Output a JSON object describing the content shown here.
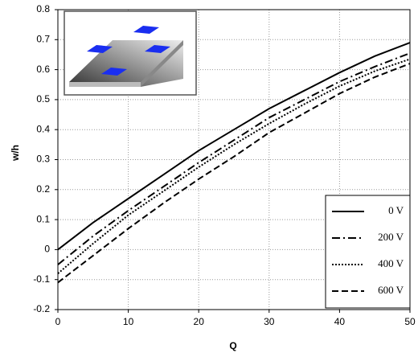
{
  "chart_data": {
    "type": "line",
    "x_label": "Q",
    "y_label": "w/h",
    "x": [
      0,
      5,
      10,
      15,
      20,
      25,
      30,
      35,
      40,
      45,
      50
    ],
    "series": [
      {
        "name": "0 V",
        "color": "#000000",
        "dash": "solid",
        "values": [
          0,
          0.09,
          0.17,
          0.25,
          0.33,
          0.4,
          0.47,
          0.53,
          0.59,
          0.645,
          0.69
        ]
      },
      {
        "name": "200 V",
        "color": "#000000",
        "dash": "dashdot",
        "values": [
          -0.05,
          0.045,
          0.13,
          0.21,
          0.29,
          0.365,
          0.44,
          0.5,
          0.56,
          0.61,
          0.655
        ]
      },
      {
        "name": "400 V",
        "color": "#000000",
        "dash": "dotted",
        "values": [
          -0.08,
          0.02,
          0.115,
          0.195,
          0.275,
          0.35,
          0.42,
          0.485,
          0.545,
          0.595,
          0.635
        ]
      },
      {
        "name": "600 V",
        "color": "#000000",
        "dash": "dashed",
        "values": [
          -0.11,
          -0.02,
          0.07,
          0.155,
          0.235,
          0.31,
          0.39,
          0.455,
          0.52,
          0.575,
          0.62
        ]
      }
    ],
    "xlim": [
      0,
      50
    ],
    "xticks": [
      0,
      10,
      20,
      30,
      40,
      50
    ],
    "ylim": [
      -0.2,
      0.8
    ],
    "yticks": [
      -0.2,
      -0.1,
      0,
      0.1,
      0.2,
      0.3,
      0.4,
      0.5,
      0.6,
      0.7,
      0.8
    ],
    "grid": true,
    "legend": "lower right"
  }
}
